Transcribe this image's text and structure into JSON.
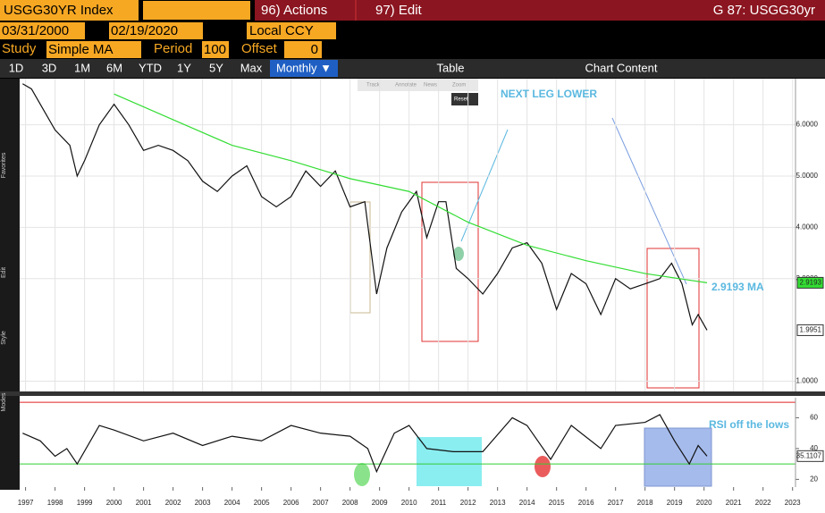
{
  "header": {
    "ticker": "USGG30YR Index",
    "actions": "96) Actions",
    "edit": "97) Edit",
    "page": "G 87: USGG30yr"
  },
  "range": {
    "start": "03/31/2000",
    "end": "02/19/2020",
    "currency": "Local CCY"
  },
  "study": {
    "label": "Study",
    "name": "Simple MA",
    "period_label": "Period",
    "period": "100",
    "offset_label": "Offset",
    "offset": "0"
  },
  "buttons": [
    "1D",
    "3D",
    "1M",
    "6M",
    "YTD",
    "1Y",
    "5Y",
    "Max",
    "Monthly ▼",
    "Table",
    "Chart Content"
  ],
  "mini_toolbar": [
    "Track",
    "Annotate",
    "News",
    "Zoom",
    "Reset"
  ],
  "side_labels": [
    "Favorites",
    "Edit",
    "Style",
    "Modes"
  ],
  "chart_data": [
    {
      "type": "line",
      "xlim": [
        1996.8,
        2023.1
      ],
      "ylim": [
        0.8,
        6.9
      ],
      "yticks": [
        {
          "value": 1,
          "label": "1.0000"
        },
        {
          "value": 3,
          "label": "3.0000"
        },
        {
          "value": 4,
          "label": "4.0000"
        },
        {
          "value": 5,
          "label": "5.0000"
        },
        {
          "value": 6,
          "label": "6.0000"
        }
      ],
      "grid": true,
      "series": [
        {
          "color": "#111111",
          "x": [
            1996.9,
            1997.2,
            1997.5,
            1998,
            1998.5,
            1998.75,
            1999,
            1999.5,
            2000,
            2000.5,
            2001,
            2001.5,
            2002,
            2002.5,
            2003,
            2003.5,
            2004,
            2004.5,
            2005,
            2005.5,
            2006,
            2006.5,
            2007,
            2007.5,
            2008,
            2008.5,
            2008.9,
            2009.25,
            2009.75,
            2010.25,
            2010.6,
            2011,
            2011.25,
            2011.6,
            2012,
            2012.5,
            2013,
            2013.5,
            2014,
            2014.5,
            2015,
            2015.5,
            2016,
            2016.5,
            2017,
            2017.5,
            2018,
            2018.5,
            2018.9,
            2019.25,
            2019.6,
            2019.8,
            2020.1
          ],
          "values": [
            6.8,
            6.7,
            6.4,
            5.9,
            5.6,
            5.0,
            5.3,
            6.0,
            6.4,
            6.0,
            5.5,
            5.6,
            5.5,
            5.3,
            4.9,
            4.7,
            5.0,
            5.2,
            4.6,
            4.4,
            4.6,
            5.1,
            4.8,
            5.1,
            4.4,
            4.5,
            2.7,
            3.6,
            4.3,
            4.7,
            3.8,
            4.5,
            4.5,
            3.2,
            3.0,
            2.7,
            3.1,
            3.6,
            3.7,
            3.3,
            2.4,
            3.1,
            2.9,
            2.3,
            3.0,
            2.8,
            2.9,
            3.0,
            3.3,
            2.9,
            2.1,
            2.3,
            1.9951
          ]
        },
        {
          "color": "#33dd33",
          "x": [
            2000,
            2002,
            2004,
            2006,
            2008,
            2010,
            2012,
            2014,
            2016,
            2018,
            2020.1
          ],
          "values": [
            6.6,
            6.1,
            5.6,
            5.3,
            4.95,
            4.7,
            4.1,
            3.65,
            3.35,
            3.1,
            2.9193
          ]
        }
      ],
      "badges": [
        {
          "value": 2.9193,
          "color": "#33dd33"
        },
        {
          "value": 1.9951,
          "color": "#111111"
        }
      ],
      "annotations": [
        "NEXT LEG LOWER",
        "2.9193 MA"
      ]
    },
    {
      "type": "line",
      "xlim": [
        1996.8,
        2023.1
      ],
      "ylim": [
        15,
        73
      ],
      "xticks": [
        1997,
        1998,
        1999,
        2000,
        2001,
        2002,
        2003,
        2004,
        2005,
        2006,
        2007,
        2008,
        2009,
        2010,
        2011,
        2012,
        2013,
        2014,
        2015,
        2016,
        2017,
        2018,
        2019,
        2020,
        2021,
        2022,
        2023
      ],
      "yticks": [
        20,
        40,
        60
      ],
      "levels": [
        {
          "value": 70,
          "color": "#e02020"
        },
        {
          "value": 30,
          "color": "#33cc33"
        }
      ],
      "series": [
        {
          "color": "#111111",
          "x": [
            1996.9,
            1997.5,
            1998,
            1998.4,
            1998.75,
            1999.5,
            2000,
            2001,
            2002,
            2003,
            2004,
            2005,
            2006,
            2007,
            2008,
            2008.6,
            2008.9,
            2009.5,
            2010,
            2010.6,
            2011.5,
            2012.5,
            2013.5,
            2014,
            2014.8,
            2015.5,
            2016.5,
            2017,
            2018,
            2018.5,
            2019,
            2019.5,
            2019.8,
            2020.1
          ],
          "values": [
            50,
            45,
            35,
            40,
            30,
            55,
            52,
            45,
            50,
            42,
            48,
            45,
            55,
            50,
            48,
            40,
            25,
            50,
            55,
            40,
            38,
            38,
            60,
            55,
            33,
            55,
            40,
            55,
            57,
            62,
            45,
            30,
            42,
            35.1107
          ]
        }
      ],
      "badges": [
        {
          "value": 35.1107,
          "color": "#111111"
        }
      ],
      "annotations": [
        "RSI off the lows"
      ]
    }
  ]
}
